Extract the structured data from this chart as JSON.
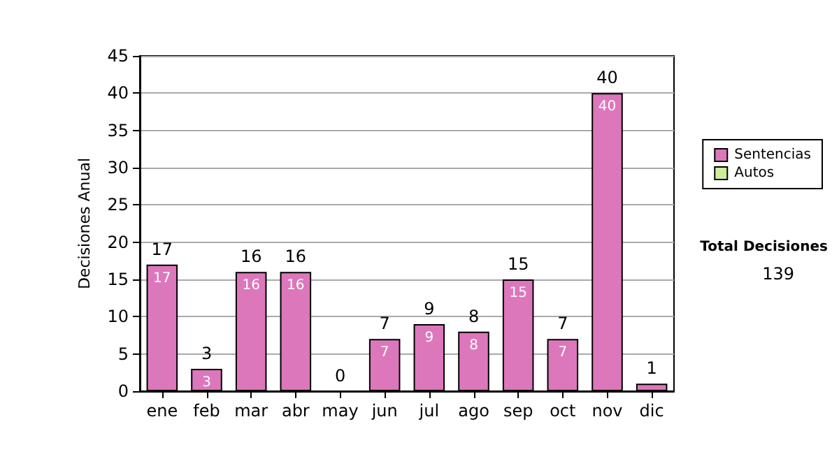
{
  "chart_data": {
    "type": "bar",
    "stacked": true,
    "ylabel": "Decisiones Anual",
    "categories": [
      "ene",
      "feb",
      "mar",
      "abr",
      "may",
      "jun",
      "jul",
      "ago",
      "sep",
      "oct",
      "nov",
      "dic"
    ],
    "series": [
      {
        "name": "Sentencias",
        "color": "#dd77bb",
        "values": [
          17,
          3,
          16,
          16,
          0,
          7,
          9,
          8,
          15,
          7,
          40,
          1
        ],
        "value_labels": [
          "17",
          "3",
          "16",
          "16",
          null,
          "7",
          "9",
          "8",
          "15",
          "7",
          "40",
          null
        ]
      },
      {
        "name": "Autos",
        "color": "#ccee99",
        "values": [
          0,
          0,
          0,
          0,
          0,
          0,
          0,
          0,
          0,
          0,
          0,
          0
        ]
      }
    ],
    "totals": [
      "17",
      "3",
      "16",
      "16",
      "0",
      "7",
      "9",
      "8",
      "15",
      "7",
      "40",
      "1"
    ],
    "ylim": [
      0,
      45
    ],
    "yticks": [
      0,
      5,
      10,
      15,
      20,
      25,
      30,
      35,
      40,
      45
    ],
    "grid": "y",
    "legend": "right",
    "annotations": [
      "Total Decisiones",
      "139"
    ]
  }
}
